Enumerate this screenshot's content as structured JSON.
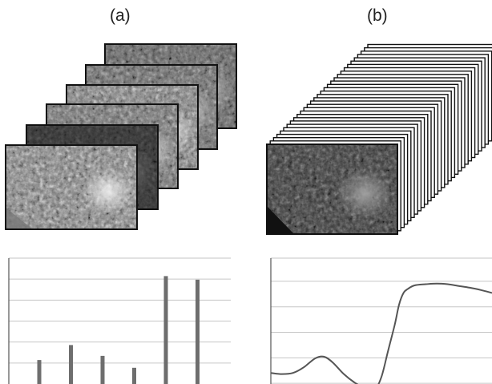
{
  "panels": {
    "a": {
      "label": "(a)"
    },
    "b": {
      "label": "(b)"
    }
  },
  "colors": {
    "bar": "#6e6e6e",
    "line": "#555555",
    "grid": "#c6c6c6",
    "frame": "#111111"
  },
  "chart_data": [
    {
      "type": "bar",
      "panel": "a",
      "values": [
        0.4,
        0.65,
        0.47,
        0.27,
        1.8,
        1.74
      ],
      "ylim": [
        0,
        2.1
      ],
      "grid": true,
      "title": "",
      "xlabel": "",
      "ylabel": ""
    },
    {
      "type": "line",
      "panel": "b",
      "x": [
        0,
        0.05,
        0.1,
        0.15,
        0.2,
        0.24,
        0.28,
        0.33,
        0.38,
        0.43,
        0.47,
        0.5,
        0.53,
        0.56,
        0.58,
        0.6,
        0.62,
        0.65,
        0.7,
        0.75,
        0.8,
        0.85,
        0.9,
        0.95,
        1.0
      ],
      "y": [
        0.62,
        0.6,
        0.62,
        0.72,
        0.87,
        0.9,
        0.8,
        0.6,
        0.45,
        0.35,
        0.33,
        0.55,
        1.0,
        1.45,
        1.8,
        2.0,
        2.07,
        2.13,
        2.15,
        2.16,
        2.15,
        2.12,
        2.09,
        2.05,
        2.0
      ],
      "ylim": [
        0,
        2.6
      ],
      "grid": true,
      "title": "",
      "xlabel": "",
      "ylabel": ""
    }
  ]
}
